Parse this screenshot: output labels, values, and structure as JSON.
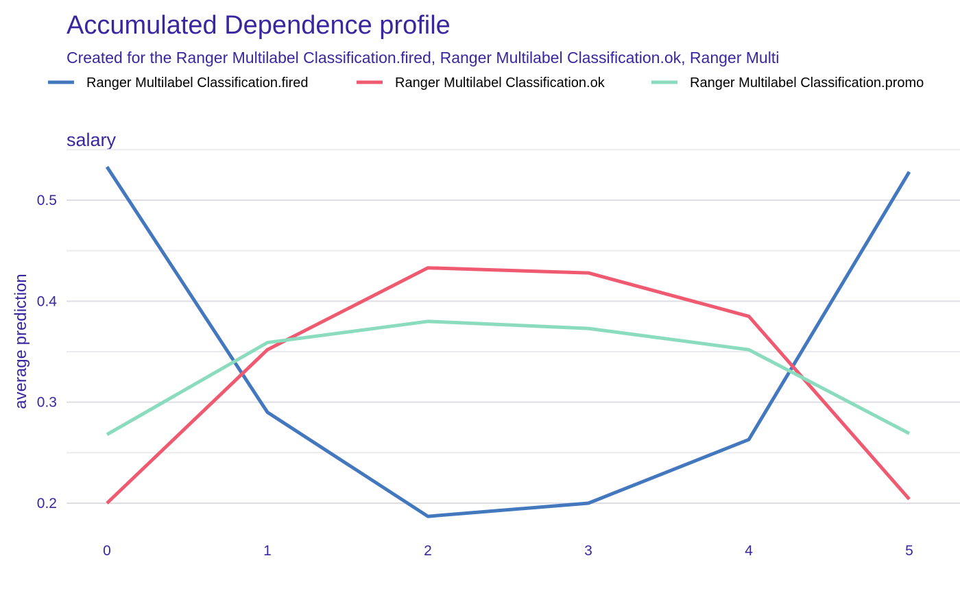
{
  "chart_data": {
    "type": "line",
    "title": "Accumulated Dependence profile",
    "subtitle": "Created for the Ranger Multilabel Classification.fired, Ranger Multilabel Classification.ok, Ranger Multi",
    "panel_label": "salary",
    "xlabel": "",
    "ylabel": "average prediction",
    "x": [
      0,
      1,
      2,
      3,
      4,
      5
    ],
    "x_ticks": [
      "0",
      "1",
      "2",
      "3",
      "4",
      "5"
    ],
    "xlim": [
      0,
      5
    ],
    "ylim": [
      0.2,
      0.55
    ],
    "y_ticks": [
      "0.2",
      "0.3",
      "0.4",
      "0.5"
    ],
    "y_tick_values": [
      0.2,
      0.3,
      0.4,
      0.5
    ],
    "grid": true,
    "legend_position": "top",
    "series": [
      {
        "name": "Ranger Multilabel Classification.fired",
        "color": "#4378bf",
        "values": [
          0.533,
          0.29,
          0.187,
          0.2,
          0.263,
          0.528
        ]
      },
      {
        "name": "Ranger Multilabel Classification.ok",
        "color": "#f05a71",
        "values": [
          0.2,
          0.352,
          0.433,
          0.428,
          0.385,
          0.204
        ]
      },
      {
        "name": "Ranger Multilabel Classification.promo",
        "color": "#8bdcbe",
        "values": [
          0.268,
          0.359,
          0.38,
          0.373,
          0.352,
          0.269
        ]
      }
    ]
  }
}
